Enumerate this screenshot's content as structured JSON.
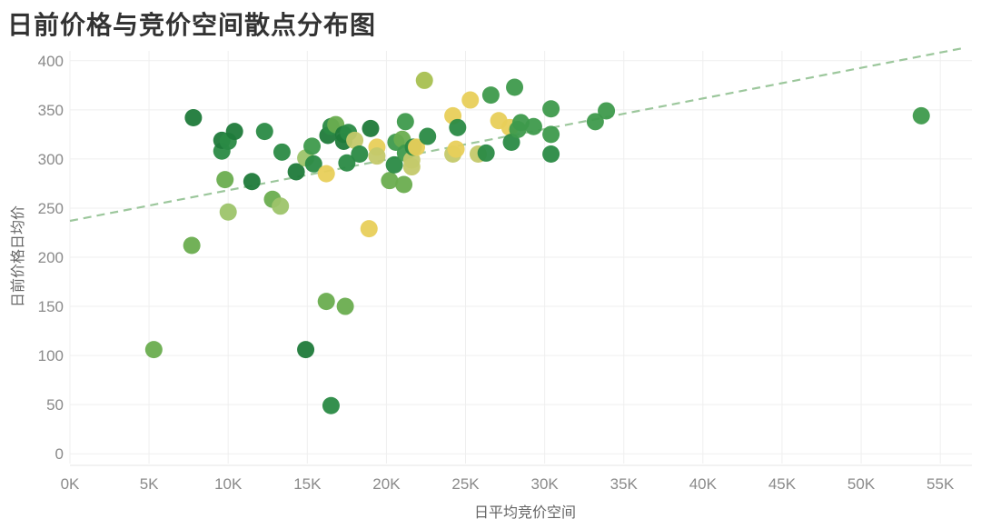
{
  "title": "日前价格与竞价空间散点分布图",
  "chart_data": {
    "type": "scatter",
    "title": "日前价格与竞价空间散点分布图",
    "xlabel": "日平均竞价空间",
    "ylabel": "日前价格日均价",
    "xlim": [
      0,
      57000
    ],
    "ylim": [
      -10,
      410
    ],
    "grid": true,
    "x_ticks": [
      {
        "v": 0,
        "label": "0K"
      },
      {
        "v": 5000,
        "label": "5K"
      },
      {
        "v": 10000,
        "label": "10K"
      },
      {
        "v": 15000,
        "label": "15K"
      },
      {
        "v": 20000,
        "label": "20K"
      },
      {
        "v": 25000,
        "label": "25K"
      },
      {
        "v": 30000,
        "label": "30K"
      },
      {
        "v": 35000,
        "label": "35K"
      },
      {
        "v": 40000,
        "label": "40K"
      },
      {
        "v": 45000,
        "label": "45K"
      },
      {
        "v": 50000,
        "label": "50K"
      },
      {
        "v": 55000,
        "label": "55K"
      }
    ],
    "y_ticks": [
      {
        "v": 0,
        "label": "0"
      },
      {
        "v": 50,
        "label": "50"
      },
      {
        "v": 100,
        "label": "100"
      },
      {
        "v": 150,
        "label": "150"
      },
      {
        "v": 200,
        "label": "200"
      },
      {
        "v": 250,
        "label": "250"
      },
      {
        "v": 300,
        "label": "300"
      },
      {
        "v": 350,
        "label": "350"
      },
      {
        "v": 400,
        "label": "400"
      }
    ],
    "trend_line": {
      "style": "dashed",
      "color": "#9cc79c",
      "points": [
        [
          0,
          237
        ],
        [
          56500,
          413
        ]
      ]
    },
    "points": [
      {
        "x": 5300,
        "y": 106,
        "color": "#6aad4f"
      },
      {
        "x": 7700,
        "y": 212,
        "color": "#6aad4f"
      },
      {
        "x": 7800,
        "y": 342,
        "color": "#1f7a3a"
      },
      {
        "x": 9600,
        "y": 308,
        "color": "#2a8a45"
      },
      {
        "x": 9600,
        "y": 319,
        "color": "#1f7a3a"
      },
      {
        "x": 9800,
        "y": 279,
        "color": "#6aad4f"
      },
      {
        "x": 10000,
        "y": 246,
        "color": "#9dc46a"
      },
      {
        "x": 10000,
        "y": 318,
        "color": "#2a8a45"
      },
      {
        "x": 10400,
        "y": 328,
        "color": "#1f7a3a"
      },
      {
        "x": 11500,
        "y": 277,
        "color": "#1f7a3a"
      },
      {
        "x": 12300,
        "y": 328,
        "color": "#2a8a45"
      },
      {
        "x": 12800,
        "y": 259,
        "color": "#6aad4f"
      },
      {
        "x": 13300,
        "y": 252,
        "color": "#9dc46a"
      },
      {
        "x": 13400,
        "y": 307,
        "color": "#2a8a45"
      },
      {
        "x": 14300,
        "y": 287,
        "color": "#1f7a3a"
      },
      {
        "x": 14900,
        "y": 106,
        "color": "#1f7a3a"
      },
      {
        "x": 14900,
        "y": 301,
        "color": "#9dc46a"
      },
      {
        "x": 15300,
        "y": 313,
        "color": "#3e9a4c"
      },
      {
        "x": 15400,
        "y": 295,
        "color": "#2a8a45"
      },
      {
        "x": 16200,
        "y": 155,
        "color": "#6aad4f"
      },
      {
        "x": 16200,
        "y": 285,
        "color": "#e8cf5a"
      },
      {
        "x": 16300,
        "y": 324,
        "color": "#1f7a3a"
      },
      {
        "x": 16500,
        "y": 333,
        "color": "#2a8a45"
      },
      {
        "x": 16500,
        "y": 49,
        "color": "#2a8a45"
      },
      {
        "x": 16800,
        "y": 335,
        "color": "#6aad4f"
      },
      {
        "x": 17300,
        "y": 325,
        "color": "#1f7a3a"
      },
      {
        "x": 17300,
        "y": 318,
        "color": "#1f7a3a"
      },
      {
        "x": 17400,
        "y": 150,
        "color": "#6aad4f"
      },
      {
        "x": 17500,
        "y": 296,
        "color": "#2a8a45"
      },
      {
        "x": 17600,
        "y": 327,
        "color": "#2a8a45"
      },
      {
        "x": 18000,
        "y": 319,
        "color": "#c4c96a"
      },
      {
        "x": 18300,
        "y": 305,
        "color": "#2a8a45"
      },
      {
        "x": 18900,
        "y": 229,
        "color": "#e8cf5a"
      },
      {
        "x": 19000,
        "y": 331,
        "color": "#1f7a3a"
      },
      {
        "x": 19400,
        "y": 312,
        "color": "#e8cf5a"
      },
      {
        "x": 19400,
        "y": 303,
        "color": "#c4c96a"
      },
      {
        "x": 20200,
        "y": 278,
        "color": "#6aad4f"
      },
      {
        "x": 20500,
        "y": 294,
        "color": "#2a8a45"
      },
      {
        "x": 20600,
        "y": 317,
        "color": "#3e9a4c"
      },
      {
        "x": 21000,
        "y": 320,
        "color": "#6aad4f"
      },
      {
        "x": 21100,
        "y": 274,
        "color": "#6aad4f"
      },
      {
        "x": 21200,
        "y": 338,
        "color": "#3e9a4c"
      },
      {
        "x": 21200,
        "y": 306,
        "color": "#3e9a4c"
      },
      {
        "x": 21600,
        "y": 292,
        "color": "#c4c96a"
      },
      {
        "x": 21600,
        "y": 299,
        "color": "#c4c96a"
      },
      {
        "x": 21700,
        "y": 312,
        "color": "#2a8a45"
      },
      {
        "x": 21900,
        "y": 312,
        "color": "#e8cf5a"
      },
      {
        "x": 22400,
        "y": 380,
        "color": "#a8c050"
      },
      {
        "x": 22600,
        "y": 323,
        "color": "#2a8a45"
      },
      {
        "x": 24200,
        "y": 344,
        "color": "#e8cf5a"
      },
      {
        "x": 24200,
        "y": 305,
        "color": "#c4c96a"
      },
      {
        "x": 24400,
        "y": 310,
        "color": "#e8cf5a"
      },
      {
        "x": 24500,
        "y": 332,
        "color": "#2a8a45"
      },
      {
        "x": 25300,
        "y": 360,
        "color": "#e8cf5a"
      },
      {
        "x": 25800,
        "y": 305,
        "color": "#c4c96a"
      },
      {
        "x": 26300,
        "y": 306,
        "color": "#2a8a45"
      },
      {
        "x": 26600,
        "y": 365,
        "color": "#3e9a4c"
      },
      {
        "x": 27100,
        "y": 339,
        "color": "#e8cf5a"
      },
      {
        "x": 27800,
        "y": 332,
        "color": "#e8cf5a"
      },
      {
        "x": 27900,
        "y": 317,
        "color": "#2a8a45"
      },
      {
        "x": 28100,
        "y": 373,
        "color": "#3e9a4c"
      },
      {
        "x": 28300,
        "y": 330,
        "color": "#3e9a4c"
      },
      {
        "x": 28500,
        "y": 337,
        "color": "#3e9a4c"
      },
      {
        "x": 29300,
        "y": 333,
        "color": "#3e9a4c"
      },
      {
        "x": 30400,
        "y": 351,
        "color": "#3e9a4c"
      },
      {
        "x": 30400,
        "y": 325,
        "color": "#3e9a4c"
      },
      {
        "x": 30400,
        "y": 305,
        "color": "#2a8a45"
      },
      {
        "x": 33200,
        "y": 338,
        "color": "#3e9a4c"
      },
      {
        "x": 33900,
        "y": 349,
        "color": "#3e9a4c"
      },
      {
        "x": 53800,
        "y": 344,
        "color": "#3e9a4c"
      }
    ]
  }
}
